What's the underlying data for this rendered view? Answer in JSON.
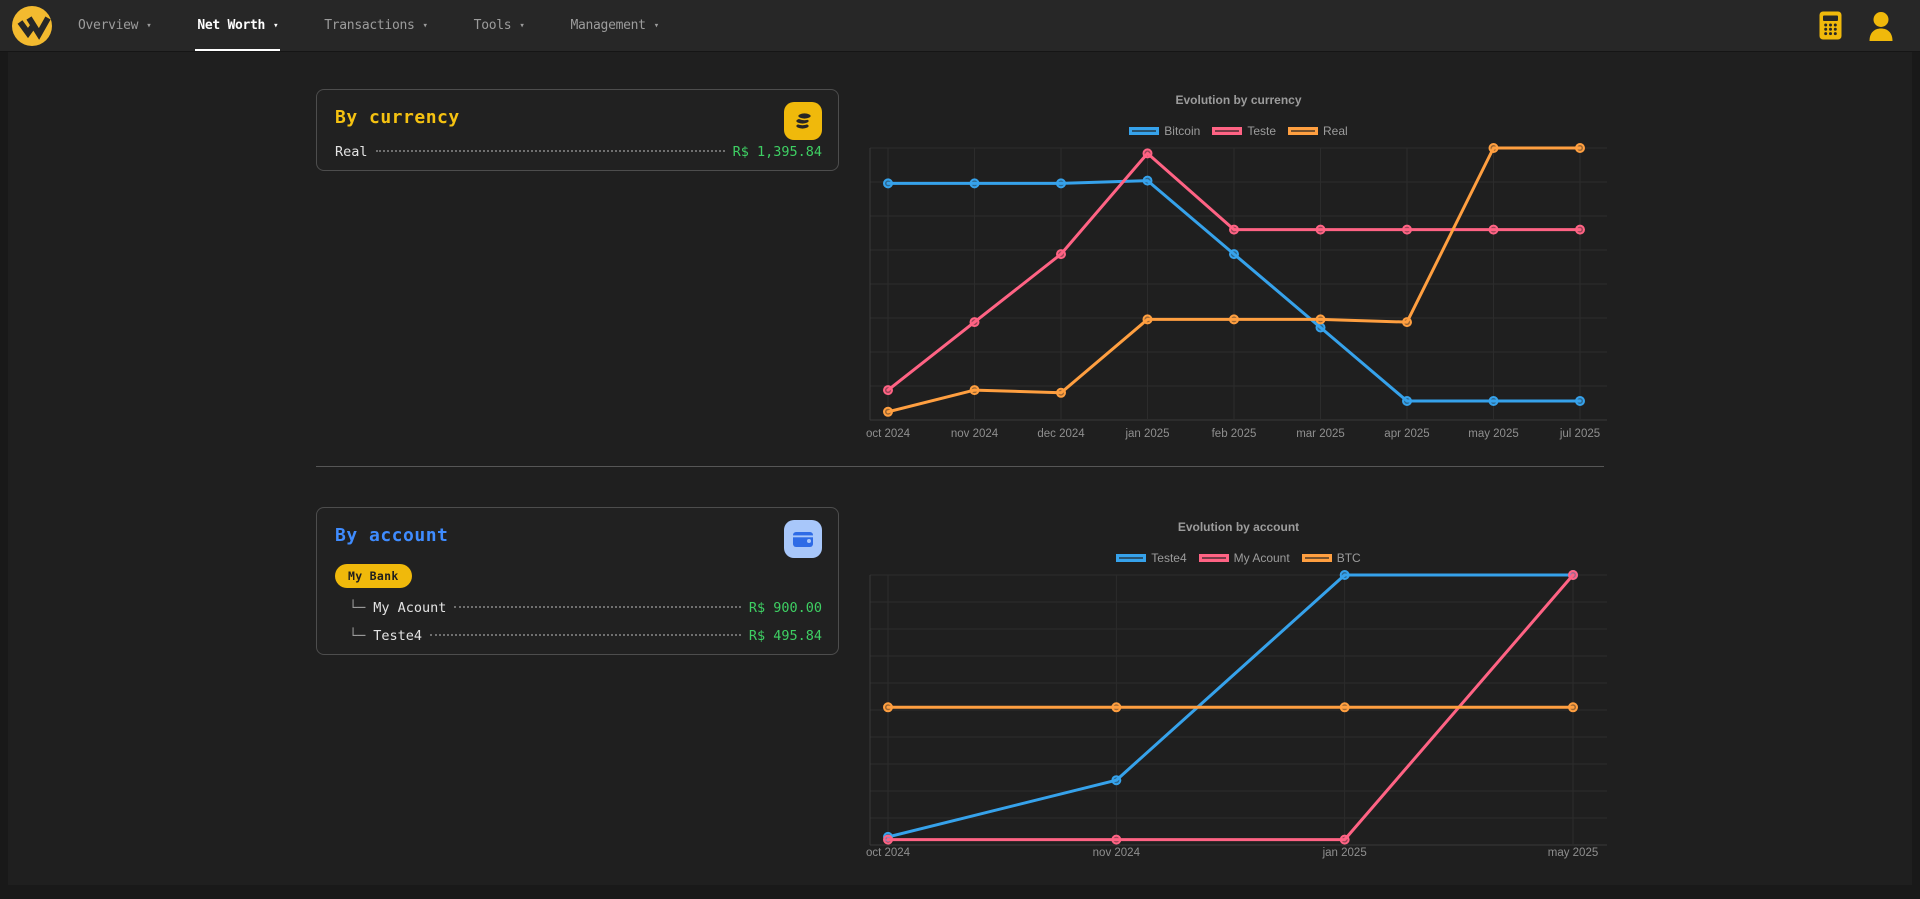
{
  "nav": {
    "items": [
      {
        "label": "Overview",
        "active": false
      },
      {
        "label": "Net Worth",
        "active": true
      },
      {
        "label": "Transactions",
        "active": false
      },
      {
        "label": "Tools",
        "active": false
      },
      {
        "label": "Management",
        "active": false
      }
    ],
    "right_icons": [
      "calculator-icon",
      "user-icon"
    ]
  },
  "colors": {
    "accent_yellow": "#f0b90b",
    "card_currency_title": "#f5c211",
    "card_account_title": "#3f8cff",
    "positive_value": "#3ecf63",
    "series_blue": "#36a2eb",
    "series_pink": "#ff6384",
    "series_orange": "#ff9f40"
  },
  "cards": {
    "by_currency": {
      "title": "By currency",
      "icon": "coins-icon",
      "rows": [
        {
          "label": "Real",
          "value": "R$ 1,395.84"
        }
      ]
    },
    "by_account": {
      "title": "By account",
      "icon": "wallet-icon",
      "bank_badge": "My Bank",
      "rows": [
        {
          "prefix": "└─",
          "label": "My Acount",
          "value": "R$ 900.00"
        },
        {
          "prefix": "└─",
          "label": "Teste4",
          "value": "R$ 495.84"
        }
      ]
    }
  },
  "chart_data": [
    {
      "type": "line",
      "title": "Evolution by currency",
      "categories": [
        "oct 2024",
        "nov 2024",
        "dec 2024",
        "jan 2025",
        "feb 2025",
        "mar 2025",
        "apr 2025",
        "may 2025",
        "jul 2025"
      ],
      "series": [
        {
          "name": "Bitcoin",
          "color": "#36a2eb",
          "values": [
            87,
            87,
            87,
            88,
            61,
            34,
            7,
            7,
            7
          ]
        },
        {
          "name": "Teste",
          "color": "#ff6384",
          "values": [
            11,
            36,
            61,
            98,
            70,
            70,
            70,
            70,
            70
          ]
        },
        {
          "name": "Real",
          "color": "#ff9f40",
          "values": [
            3,
            11,
            10,
            37,
            37,
            37,
            36,
            100,
            100
          ]
        }
      ],
      "ylim": [
        0,
        100
      ],
      "y_axis": "unlabeled (values estimated on a 0-100 normalized scale)",
      "grid": true,
      "legend_position": "top"
    },
    {
      "type": "line",
      "title": "Evolution by account",
      "categories": [
        "oct 2024",
        "nov 2024",
        "jan 2025",
        "may 2025"
      ],
      "series": [
        {
          "name": "Teste4",
          "color": "#36a2eb",
          "values": [
            3,
            24,
            100,
            100
          ]
        },
        {
          "name": "My Acount",
          "color": "#ff6384",
          "values": [
            2,
            2,
            2,
            100
          ]
        },
        {
          "name": "BTC",
          "color": "#ff9f40",
          "values": [
            51,
            51,
            51,
            51
          ]
        }
      ],
      "ylim": [
        0,
        100
      ],
      "y_axis": "unlabeled (values estimated on a 0-100 normalized scale)",
      "grid": true,
      "legend_position": "top"
    }
  ]
}
